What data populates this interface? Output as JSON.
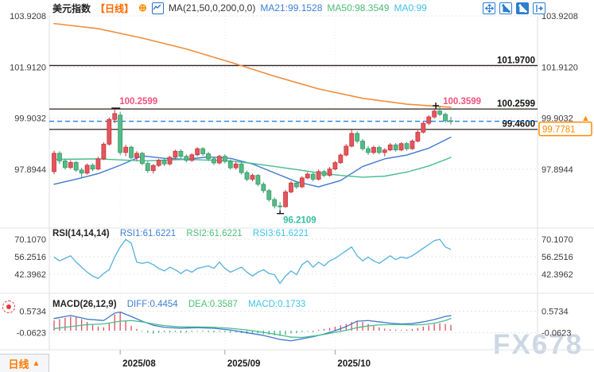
{
  "header": {
    "symbol": "美元指数",
    "period": "【日线】",
    "add_icon": "⊕",
    "ma_settings": "MA(21,50,0,200,0,0)",
    "ma21": "MA21:99.1528",
    "ma50": "MA50:98.3549",
    "ma0": "MA0:99"
  },
  "toolbar": {
    "icons": [
      "pan-icon",
      "axis-scale-icon",
      "axis-scale-active-icon",
      "jump-to-latest-icon"
    ]
  },
  "bottom": {
    "period_label": "日线",
    "arrow": "▲"
  },
  "watermark": "FX678",
  "chart_data": {
    "type": "candlestick+indicators",
    "symbol": "美元指数",
    "interval": "日线",
    "x_axis": {
      "labels": [
        "2025/08",
        "2025/09",
        "2025/10"
      ],
      "indices": [
        12,
        31,
        51
      ]
    },
    "price_ticks": [
      "103.9208",
      "101.9120",
      "99.9032",
      "97.8944"
    ],
    "levels": {
      "resistance_top": {
        "value": 101.97,
        "label": "101.9700"
      },
      "resistance_mid": {
        "value": 100.2599,
        "label": "100.2599"
      },
      "support": {
        "value": 99.46,
        "label": "99.4600"
      },
      "last_price": {
        "value": 99.7781,
        "label": "99.7781"
      },
      "swing_high_left": {
        "value": 100.2599,
        "label": "100.2599",
        "index": 11
      },
      "swing_high_right": {
        "value": 100.3599,
        "label": "100.3599",
        "index": 70
      },
      "swing_low": {
        "value": 96.2109,
        "label": "96.2109",
        "index": 41
      }
    },
    "candles": [
      [
        97.8,
        98.62,
        97.7,
        98.52
      ],
      [
        98.52,
        98.6,
        98.1,
        98.22
      ],
      [
        98.22,
        98.3,
        97.88,
        97.96
      ],
      [
        97.96,
        98.25,
        97.9,
        98.16
      ],
      [
        98.16,
        98.22,
        97.78,
        97.86
      ],
      [
        97.86,
        97.95,
        97.55,
        97.74
      ],
      [
        97.74,
        98.12,
        97.68,
        98.05
      ],
      [
        98.05,
        98.12,
        97.82,
        97.9
      ],
      [
        97.9,
        98.38,
        97.85,
        98.3
      ],
      [
        98.3,
        98.95,
        98.25,
        98.88
      ],
      [
        98.88,
        99.92,
        98.82,
        99.85
      ],
      [
        99.85,
        100.2599,
        99.7,
        100.08
      ],
      [
        100.02,
        100.15,
        98.45,
        98.55
      ],
      [
        98.55,
        98.85,
        98.4,
        98.76
      ],
      [
        98.76,
        98.82,
        98.28,
        98.35
      ],
      [
        98.35,
        98.6,
        98.22,
        98.52
      ],
      [
        98.52,
        98.58,
        98.05,
        98.12
      ],
      [
        98.12,
        98.2,
        97.75,
        97.84
      ],
      [
        97.84,
        98.1,
        97.72,
        98.04
      ],
      [
        98.04,
        98.3,
        97.98,
        98.24
      ],
      [
        98.24,
        98.32,
        98.02,
        98.1
      ],
      [
        98.1,
        98.42,
        98.05,
        98.36
      ],
      [
        98.36,
        98.66,
        98.3,
        98.6
      ],
      [
        98.6,
        98.68,
        98.32,
        98.4
      ],
      [
        98.4,
        98.48,
        98.16,
        98.24
      ],
      [
        98.24,
        98.52,
        98.18,
        98.46
      ],
      [
        98.46,
        98.76,
        98.4,
        98.7
      ],
      [
        98.7,
        98.76,
        98.42,
        98.5
      ],
      [
        98.5,
        98.58,
        98.22,
        98.3
      ],
      [
        98.3,
        98.38,
        98.06,
        98.14
      ],
      [
        98.14,
        98.46,
        98.08,
        98.4
      ],
      [
        98.4,
        98.48,
        98.12,
        98.2
      ],
      [
        98.2,
        98.28,
        97.88,
        97.95
      ],
      [
        97.95,
        98.18,
        97.88,
        98.1
      ],
      [
        98.1,
        98.16,
        97.68,
        97.76
      ],
      [
        97.76,
        97.84,
        97.42,
        97.5
      ],
      [
        97.5,
        97.72,
        97.42,
        97.65
      ],
      [
        97.65,
        97.7,
        97.22,
        97.3
      ],
      [
        97.3,
        97.38,
        96.96,
        97.05
      ],
      [
        97.05,
        97.12,
        96.62,
        96.7
      ],
      [
        96.7,
        96.78,
        96.35,
        96.45
      ],
      [
        96.45,
        96.6,
        96.2109,
        96.42
      ],
      [
        96.42,
        97.08,
        96.38,
        97.0
      ],
      [
        97.0,
        97.42,
        96.95,
        97.35
      ],
      [
        97.35,
        97.42,
        97.12,
        97.2
      ],
      [
        97.2,
        97.62,
        97.15,
        97.55
      ],
      [
        97.55,
        97.78,
        97.5,
        97.7
      ],
      [
        97.7,
        97.76,
        97.42,
        97.5
      ],
      [
        97.5,
        97.88,
        97.45,
        97.8
      ],
      [
        97.8,
        97.86,
        97.58,
        97.65
      ],
      [
        97.65,
        97.98,
        97.6,
        97.9
      ],
      [
        97.9,
        98.22,
        97.85,
        98.15
      ],
      [
        98.15,
        98.52,
        98.1,
        98.45
      ],
      [
        98.45,
        98.88,
        98.4,
        98.8
      ],
      [
        98.8,
        99.45,
        98.75,
        99.3
      ],
      [
        99.3,
        99.38,
        98.92,
        99.0
      ],
      [
        99.0,
        99.08,
        98.62,
        98.7
      ],
      [
        98.7,
        98.8,
        98.45,
        98.55
      ],
      [
        98.55,
        98.82,
        98.48,
        98.75
      ],
      [
        98.75,
        98.82,
        98.48,
        98.55
      ],
      [
        98.55,
        98.72,
        98.4,
        98.65
      ],
      [
        98.65,
        98.92,
        98.6,
        98.85
      ],
      [
        98.85,
        98.92,
        98.58,
        98.65
      ],
      [
        98.65,
        98.96,
        98.6,
        98.9
      ],
      [
        98.9,
        98.96,
        98.62,
        98.7
      ],
      [
        98.7,
        99.06,
        98.65,
        99.0
      ],
      [
        99.0,
        99.42,
        98.95,
        99.35
      ],
      [
        99.35,
        99.78,
        99.3,
        99.7
      ],
      [
        99.7,
        100.02,
        99.62,
        99.95
      ],
      [
        99.95,
        100.25,
        99.88,
        100.18
      ],
      [
        100.18,
        100.3599,
        99.98,
        100.05
      ],
      [
        100.05,
        100.12,
        99.72,
        99.8
      ],
      [
        99.8,
        99.95,
        99.65,
        99.7781
      ]
    ],
    "ma200_points": [
      [
        0,
        103.62
      ],
      [
        8,
        103.42
      ],
      [
        16,
        103.05
      ],
      [
        24,
        102.62
      ],
      [
        32,
        102.1
      ],
      [
        40,
        101.55
      ],
      [
        48,
        101.05
      ],
      [
        56,
        100.68
      ],
      [
        64,
        100.45
      ],
      [
        70,
        100.36
      ],
      [
        72,
        100.33
      ]
    ],
    "ma21_points": [
      [
        0,
        97.3
      ],
      [
        4,
        97.5
      ],
      [
        8,
        97.72
      ],
      [
        12,
        98.05
      ],
      [
        16,
        98.42
      ],
      [
        20,
        98.32
      ],
      [
        24,
        98.28
      ],
      [
        28,
        98.38
      ],
      [
        32,
        98.32
      ],
      [
        36,
        98.1
      ],
      [
        40,
        97.75
      ],
      [
        44,
        97.4
      ],
      [
        48,
        97.2
      ],
      [
        52,
        97.45
      ],
      [
        56,
        98.0
      ],
      [
        60,
        98.3
      ],
      [
        64,
        98.45
      ],
      [
        68,
        98.72
      ],
      [
        72,
        99.1528
      ]
    ],
    "ma50_points": [
      [
        0,
        98.28
      ],
      [
        8,
        98.3
      ],
      [
        16,
        98.22
      ],
      [
        24,
        98.28
      ],
      [
        32,
        98.22
      ],
      [
        36,
        98.12
      ],
      [
        40,
        98.0
      ],
      [
        44,
        97.88
      ],
      [
        48,
        97.75
      ],
      [
        52,
        97.65
      ],
      [
        56,
        97.58
      ],
      [
        60,
        97.62
      ],
      [
        64,
        97.78
      ],
      [
        68,
        98.02
      ],
      [
        72,
        98.3549
      ]
    ],
    "rsi": {
      "params": "RSI(14,14,14)",
      "rsi1": "RSI1:61.6221",
      "rsi2": "RSI2:61.6221",
      "rsi3": "RSI3:61.6221",
      "ticks": [
        "70.1070",
        "56.2516",
        "42.3962"
      ],
      "values": [
        56,
        53,
        55,
        57,
        52,
        48,
        44,
        41,
        39,
        43,
        46,
        56,
        64,
        70,
        67,
        52,
        51,
        52,
        50,
        47,
        45,
        48,
        46,
        43,
        46,
        44,
        47,
        48,
        49,
        47,
        52,
        47,
        44,
        46,
        48,
        44,
        41,
        44,
        46,
        43,
        42,
        35,
        41,
        45,
        42,
        50,
        53,
        48,
        52,
        49,
        53,
        55,
        58,
        61,
        64,
        57,
        53,
        56,
        53,
        51,
        54,
        57,
        54,
        56,
        55,
        57,
        60,
        63,
        66,
        69,
        70,
        64,
        62
      ]
    },
    "macd": {
      "params": "MACD(26,12,9)",
      "diff": "DIFF:0.4454",
      "dea": "DEA:0.3587",
      "macd": "MACD:0.1733",
      "ticks": [
        "0.5734",
        "-0.0623"
      ],
      "hist": [
        0.3,
        0.34,
        0.38,
        0.42,
        0.4,
        0.34,
        0.26,
        0.18,
        0.12,
        0.1,
        0.22,
        0.48,
        0.56,
        0.3,
        0.14,
        0.05,
        -0.02,
        -0.06,
        -0.09,
        -0.06,
        -0.04,
        -0.05,
        -0.04,
        -0.06,
        -0.05,
        -0.03,
        -0.02,
        -0.03,
        -0.04,
        -0.05,
        -0.03,
        -0.04,
        -0.06,
        -0.05,
        -0.07,
        -0.09,
        -0.1,
        -0.08,
        -0.1,
        -0.12,
        -0.14,
        -0.16,
        -0.12,
        -0.08,
        -0.07,
        -0.04,
        -0.02,
        -0.04,
        0.03,
        0.05,
        0.08,
        0.12,
        0.16,
        0.2,
        0.26,
        0.3,
        0.26,
        0.2,
        0.14,
        0.1,
        0.06,
        0.04,
        0.03,
        0.02,
        0.03,
        0.05,
        0.08,
        0.12,
        0.16,
        0.2,
        0.22,
        0.2,
        0.17
      ],
      "diff_points": [
        [
          0,
          0.36
        ],
        [
          3,
          0.45
        ],
        [
          6,
          0.34
        ],
        [
          9,
          0.3
        ],
        [
          11,
          0.52
        ],
        [
          12,
          0.55
        ],
        [
          14,
          0.42
        ],
        [
          16,
          0.28
        ],
        [
          18,
          0.16
        ],
        [
          20,
          0.1
        ],
        [
          23,
          0.07
        ],
        [
          26,
          0.09
        ],
        [
          29,
          0.07
        ],
        [
          32,
          0.02
        ],
        [
          35,
          -0.06
        ],
        [
          38,
          -0.14
        ],
        [
          41,
          -0.26
        ],
        [
          43,
          -0.3
        ],
        [
          45,
          -0.24
        ],
        [
          47,
          -0.18
        ],
        [
          49,
          -0.1
        ],
        [
          51,
          0.0
        ],
        [
          53,
          0.12
        ],
        [
          55,
          0.28
        ],
        [
          57,
          0.3
        ],
        [
          59,
          0.26
        ],
        [
          61,
          0.22
        ],
        [
          63,
          0.2
        ],
        [
          65,
          0.21
        ],
        [
          67,
          0.26
        ],
        [
          69,
          0.33
        ],
        [
          71,
          0.42
        ],
        [
          72,
          0.4454
        ]
      ],
      "dea_points": [
        [
          0,
          0.06
        ],
        [
          3,
          0.12
        ],
        [
          6,
          0.18
        ],
        [
          9,
          0.2
        ],
        [
          12,
          0.28
        ],
        [
          14,
          0.3
        ],
        [
          16,
          0.26
        ],
        [
          18,
          0.2
        ],
        [
          20,
          0.15
        ],
        [
          23,
          0.11
        ],
        [
          26,
          0.11
        ],
        [
          29,
          0.1
        ],
        [
          32,
          0.07
        ],
        [
          35,
          0.02
        ],
        [
          38,
          -0.05
        ],
        [
          41,
          -0.13
        ],
        [
          43,
          -0.19
        ],
        [
          45,
          -0.2
        ],
        [
          47,
          -0.16
        ],
        [
          49,
          -0.11
        ],
        [
          51,
          -0.05
        ],
        [
          53,
          0.01
        ],
        [
          55,
          0.09
        ],
        [
          57,
          0.14
        ],
        [
          59,
          0.17
        ],
        [
          61,
          0.18
        ],
        [
          63,
          0.18
        ],
        [
          65,
          0.17
        ],
        [
          67,
          0.18
        ],
        [
          69,
          0.22
        ],
        [
          71,
          0.3
        ],
        [
          72,
          0.3587
        ]
      ]
    },
    "colors": {
      "up": "#e2575c",
      "up_border": "#c9353c",
      "down": "#57ba87",
      "down_border": "#339a68",
      "ma200": "#ef8d3c",
      "ma21": "#3f78cf",
      "ma50": "#46bd8e",
      "rsi_line": "#53b1dc",
      "level_line": "#332222",
      "last_price_line": "#1e7fe0",
      "pink_label": "#f0517c",
      "teal_label": "#33c1a0",
      "orange": "#ff8a00",
      "grid": "#e4e4e4",
      "axis_text": "#3a3a3a"
    }
  }
}
